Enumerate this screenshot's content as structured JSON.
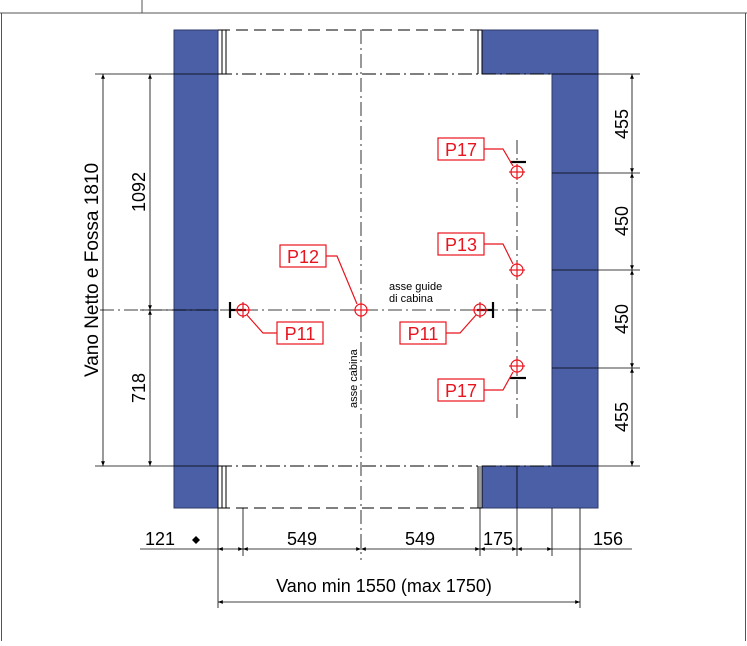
{
  "colors": {
    "wall": "#4a5fa5",
    "wall_edge": "#2c3a6a",
    "line": "#000000",
    "marker": "#e8141e",
    "marker_fill": "#ffffff"
  },
  "labels": {
    "vano_netto_fossa": "Vano Netto e Fossa 1810",
    "dim_1092": "1092",
    "dim_718": "718",
    "dim_455_top": "455",
    "dim_450_a": "450",
    "dim_450_b": "450",
    "dim_455_bottom": "455",
    "dim_121": "121",
    "dim_549_left": "549",
    "dim_549_right": "549",
    "dim_175": "175",
    "dim_156": "156",
    "vano_min": "Vano min 1550 (max 1750)",
    "asse_guide_line1": "asse guide",
    "asse_guide_line2": "di cabina",
    "asse_cabina": "asse cabina"
  },
  "markers": {
    "p17_top": "P17",
    "p13": "P13",
    "p12": "P12",
    "p11_left": "P11",
    "p11_right": "P11",
    "p17_bottom": "P17"
  },
  "icons": {
    "small_diamond": "diamond-icon"
  }
}
